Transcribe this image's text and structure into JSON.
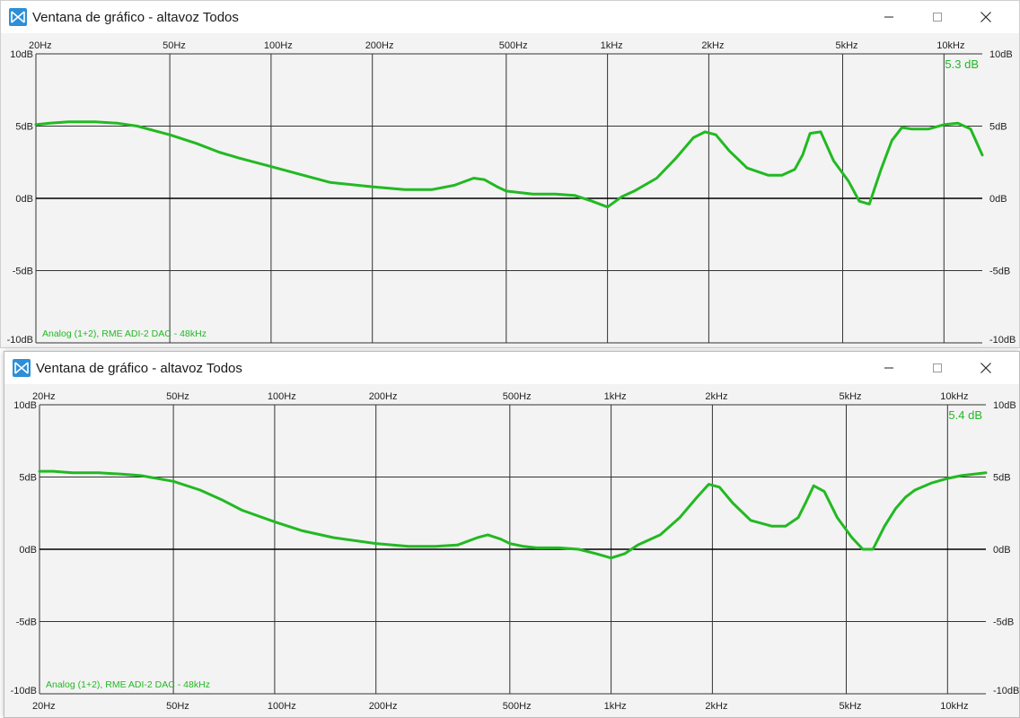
{
  "windows": [
    {
      "title": "Ventana de gráfico - altavoz Todos",
      "controls": {
        "minimize": "minimize-icon",
        "maximize": "maximize-icon",
        "close": "close-icon"
      },
      "peak_readout": "5.3 dB",
      "device_label": "Analog (1+2), RME ADI-2 DAC - 48kHz",
      "top_freq_labels": [
        "20Hz",
        "50Hz",
        "100Hz",
        "200Hz",
        "500Hz",
        "1kHz",
        "2kHz",
        "5kHz",
        "10kHz"
      ],
      "bottom_freq_labels": [],
      "db_labels": [
        "10dB",
        "5dB",
        "0dB",
        "-5dB",
        "-10dB"
      ],
      "chart_data": {
        "type": "line",
        "x_scale": "log",
        "xlim": [
          20,
          13000
        ],
        "ylim": [
          -10,
          10
        ],
        "grid": true,
        "freq_ticks": [
          20,
          50,
          100,
          200,
          500,
          1000,
          2000,
          5000,
          10000
        ],
        "db_ticks": [
          10,
          5,
          0,
          -5,
          -10
        ],
        "series": [
          {
            "color": "#22b922",
            "x": [
              20,
              22,
              25,
              30,
              35,
              40,
              50,
              60,
              70,
              80,
              100,
              120,
              150,
              200,
              250,
              300,
              350,
              400,
              430,
              470,
              500,
              550,
              600,
              700,
              800,
              900,
              1000,
              1100,
              1200,
              1400,
              1600,
              1800,
              1950,
              2100,
              2300,
              2600,
              3000,
              3300,
              3600,
              3800,
              4000,
              4300,
              4700,
              5200,
              5600,
              6000,
              6500,
              7000,
              7500,
              8000,
              9000,
              10000,
              11000,
              12000,
              13000
            ],
            "y": [
              5.1,
              5.2,
              5.3,
              5.3,
              5.2,
              5.0,
              4.4,
              3.8,
              3.2,
              2.8,
              2.2,
              1.7,
              1.1,
              0.8,
              0.6,
              0.6,
              0.9,
              1.4,
              1.3,
              0.8,
              0.5,
              0.4,
              0.3,
              0.3,
              0.2,
              -0.2,
              -0.6,
              0.1,
              0.5,
              1.4,
              2.8,
              4.2,
              4.6,
              4.4,
              3.3,
              2.1,
              1.6,
              1.6,
              2.0,
              3.0,
              4.5,
              4.6,
              2.6,
              1.2,
              -0.2,
              -0.4,
              2.0,
              4.0,
              4.9,
              4.8,
              4.8,
              5.1,
              5.2,
              4.8,
              3.0
            ]
          }
        ]
      }
    },
    {
      "title": "Ventana de gráfico - altavoz Todos",
      "controls": {
        "minimize": "minimize-icon",
        "maximize": "maximize-icon",
        "close": "close-icon"
      },
      "peak_readout": "5.4 dB",
      "device_label": "Analog (1+2), RME ADI-2 DAC - 48kHz",
      "top_freq_labels": [
        "20Hz",
        "50Hz",
        "100Hz",
        "200Hz",
        "500Hz",
        "1kHz",
        "2kHz",
        "5kHz",
        "10kHz"
      ],
      "bottom_freq_labels": [
        "20Hz",
        "50Hz",
        "100Hz",
        "200Hz",
        "500Hz",
        "1kHz",
        "2kHz",
        "5kHz",
        "10kHz"
      ],
      "db_labels": [
        "10dB",
        "5dB",
        "0dB",
        "-5dB",
        "-10dB"
      ],
      "chart_data": {
        "type": "line",
        "x_scale": "log",
        "xlim": [
          20,
          13000
        ],
        "ylim": [
          -10,
          10
        ],
        "grid": true,
        "freq_ticks": [
          20,
          50,
          100,
          200,
          500,
          1000,
          2000,
          5000,
          10000
        ],
        "db_ticks": [
          10,
          5,
          0,
          -5,
          -10
        ],
        "series": [
          {
            "color": "#22b922",
            "x": [
              20,
              22,
              25,
              30,
              35,
              40,
              50,
              60,
              70,
              80,
              100,
              120,
              150,
              200,
              250,
              300,
              350,
              400,
              430,
              470,
              500,
              550,
              600,
              700,
              800,
              900,
              1000,
              1100,
              1200,
              1400,
              1600,
              1800,
              1950,
              2100,
              2300,
              2600,
              3000,
              3300,
              3600,
              3800,
              4000,
              4300,
              4700,
              5200,
              5600,
              6000,
              6500,
              7000,
              7500,
              8000,
              9000,
              10000,
              11000,
              12000,
              13000
            ],
            "y": [
              5.4,
              5.4,
              5.3,
              5.3,
              5.2,
              5.1,
              4.7,
              4.1,
              3.4,
              2.7,
              1.9,
              1.3,
              0.8,
              0.4,
              0.2,
              0.2,
              0.3,
              0.8,
              1.0,
              0.7,
              0.4,
              0.2,
              0.1,
              0.1,
              0.0,
              -0.3,
              -0.6,
              -0.3,
              0.3,
              1.0,
              2.2,
              3.6,
              4.5,
              4.3,
              3.2,
              2.0,
              1.6,
              1.6,
              2.2,
              3.3,
              4.4,
              4.0,
              2.2,
              0.8,
              0.0,
              0.0,
              1.6,
              2.8,
              3.6,
              4.1,
              4.6,
              4.9,
              5.1,
              5.2,
              5.3
            ]
          }
        ]
      }
    }
  ]
}
